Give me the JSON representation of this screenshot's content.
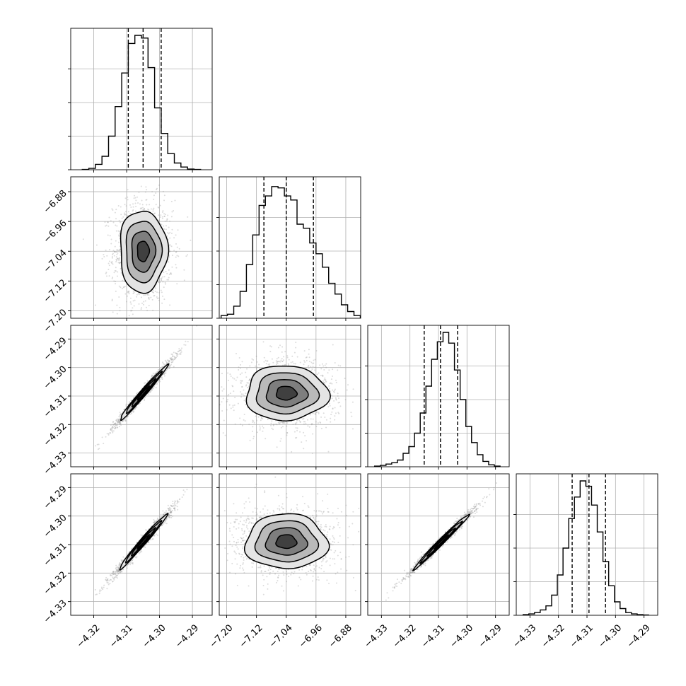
{
  "chart_data": {
    "type": "corner",
    "parameters": [
      {
        "range": [
          -4.327,
          -4.284
        ],
        "ticks": [
          -4.32,
          -4.31,
          -4.3,
          -4.29
        ],
        "tick_labels": [
          "−4.32",
          "−4.31",
          "−4.30",
          "−4.29"
        ],
        "quantiles": [
          -4.3095,
          -4.305,
          -4.2995
        ],
        "hist_edges": [
          -4.3235,
          -4.3215,
          -4.3195,
          -4.3175,
          -4.3155,
          -4.3135,
          -4.3115,
          -4.3095,
          -4.3075,
          -4.3055,
          -4.3035,
          -4.3015,
          -4.2995,
          -4.2975,
          -4.2955,
          -4.2935,
          -4.2915,
          -4.2895,
          -4.2875
        ],
        "hist_counts": [
          0.002,
          0.01,
          0.04,
          0.1,
          0.25,
          0.47,
          0.72,
          0.94,
          1.0,
          0.98,
          0.76,
          0.46,
          0.27,
          0.12,
          0.05,
          0.02,
          0.005,
          0.002
        ]
      },
      {
        "range": [
          -7.22,
          -6.84
        ],
        "ticks": [
          -7.2,
          -7.12,
          -7.04,
          -6.96,
          -6.88
        ],
        "tick_labels": [
          "−7.20",
          "−7.12",
          "−7.04",
          "−6.96",
          "−6.88"
        ],
        "quantiles": [
          -7.1,
          -7.04,
          -6.967
        ],
        "hist_edges": [
          -7.215,
          -7.198,
          -7.181,
          -7.164,
          -7.147,
          -7.13,
          -7.113,
          -7.096,
          -7.079,
          -7.062,
          -7.045,
          -7.028,
          -7.011,
          -6.994,
          -6.977,
          -6.96,
          -6.943,
          -6.926,
          -6.909,
          -6.892,
          -6.875,
          -6.858,
          -6.841
        ],
        "hist_counts": [
          0.02,
          0.03,
          0.09,
          0.2,
          0.4,
          0.62,
          0.84,
          0.91,
          0.98,
          0.97,
          0.91,
          0.88,
          0.7,
          0.67,
          0.56,
          0.48,
          0.38,
          0.26,
          0.18,
          0.1,
          0.05,
          0.02
        ]
      },
      {
        "range": [
          -4.3348,
          -4.2852
        ],
        "ticks": [
          -4.33,
          -4.32,
          -4.31,
          -4.3,
          -4.29
        ],
        "tick_labels": [
          "−4.33",
          "−4.32",
          "−4.31",
          "−4.30",
          "−4.29"
        ],
        "quantiles": [
          -4.315,
          -4.3093,
          -4.3033
        ],
        "hist_edges": [
          -4.3324,
          -4.3304,
          -4.3284,
          -4.3264,
          -4.3244,
          -4.3224,
          -4.3204,
          -4.3184,
          -4.3164,
          -4.3144,
          -4.3124,
          -4.3104,
          -4.3084,
          -4.3064,
          -4.3044,
          -4.3024,
          -4.3004,
          -4.2984,
          -4.2964,
          -4.2944,
          -4.2924,
          -4.2904,
          -4.2884
        ],
        "hist_counts": [
          0.005,
          0.01,
          0.02,
          0.03,
          0.05,
          0.1,
          0.15,
          0.25,
          0.4,
          0.6,
          0.8,
          0.93,
          1.0,
          0.92,
          0.72,
          0.5,
          0.3,
          0.18,
          0.09,
          0.04,
          0.015,
          0.005
        ]
      },
      {
        "range": [
          -4.3348,
          -4.2852
        ],
        "ticks": [
          -4.33,
          -4.32,
          -4.31,
          -4.3,
          -4.29
        ],
        "tick_labels": [
          "−4.33",
          "−4.32",
          "−4.31",
          "−4.30",
          "−4.29"
        ],
        "quantiles": [
          -4.3152,
          -4.3093,
          -4.3035
        ],
        "hist_edges": [
          -4.3324,
          -4.3304,
          -4.3284,
          -4.3264,
          -4.3244,
          -4.3224,
          -4.3204,
          -4.3184,
          -4.3164,
          -4.3144,
          -4.3124,
          -4.3104,
          -4.3084,
          -4.3064,
          -4.3044,
          -4.3024,
          -4.3004,
          -4.2984,
          -4.2964,
          -4.2944,
          -4.2924,
          -4.2904,
          -4.2884
        ],
        "hist_counts": [
          0.005,
          0.01,
          0.02,
          0.04,
          0.07,
          0.15,
          0.3,
          0.5,
          0.72,
          0.88,
          1.0,
          0.96,
          0.82,
          0.62,
          0.4,
          0.22,
          0.1,
          0.05,
          0.02,
          0.01,
          0.005,
          0.002
        ]
      }
    ],
    "pairs": [
      {
        "row": 1,
        "col": 0,
        "center": [
          -4.305,
          -7.04
        ],
        "sigma": [
          0.0036,
          0.055
        ],
        "corr": 0.0
      },
      {
        "row": 2,
        "col": 0,
        "center": [
          -4.305,
          -4.309
        ],
        "sigma": [
          0.0036,
          0.0048
        ],
        "corr": 0.985
      },
      {
        "row": 2,
        "col": 1,
        "center": [
          -7.04,
          -4.309
        ],
        "sigma": [
          0.055,
          0.0048
        ],
        "corr": 0.0
      },
      {
        "row": 3,
        "col": 0,
        "center": [
          -4.305,
          -4.309
        ],
        "sigma": [
          0.0036,
          0.0048
        ],
        "corr": 0.985
      },
      {
        "row": 3,
        "col": 1,
        "center": [
          -7.04,
          -4.309
        ],
        "sigma": [
          0.055,
          0.0048
        ],
        "corr": 0.0
      },
      {
        "row": 3,
        "col": 2,
        "center": [
          -4.309,
          -4.309
        ],
        "sigma": [
          0.0048,
          0.0048
        ],
        "corr": 0.99
      }
    ],
    "contour_levels_sigma": [
      0.5,
      1.0,
      1.5,
      2.0
    ],
    "grid": true,
    "title": "",
    "xlabel": "",
    "ylabel": ""
  }
}
